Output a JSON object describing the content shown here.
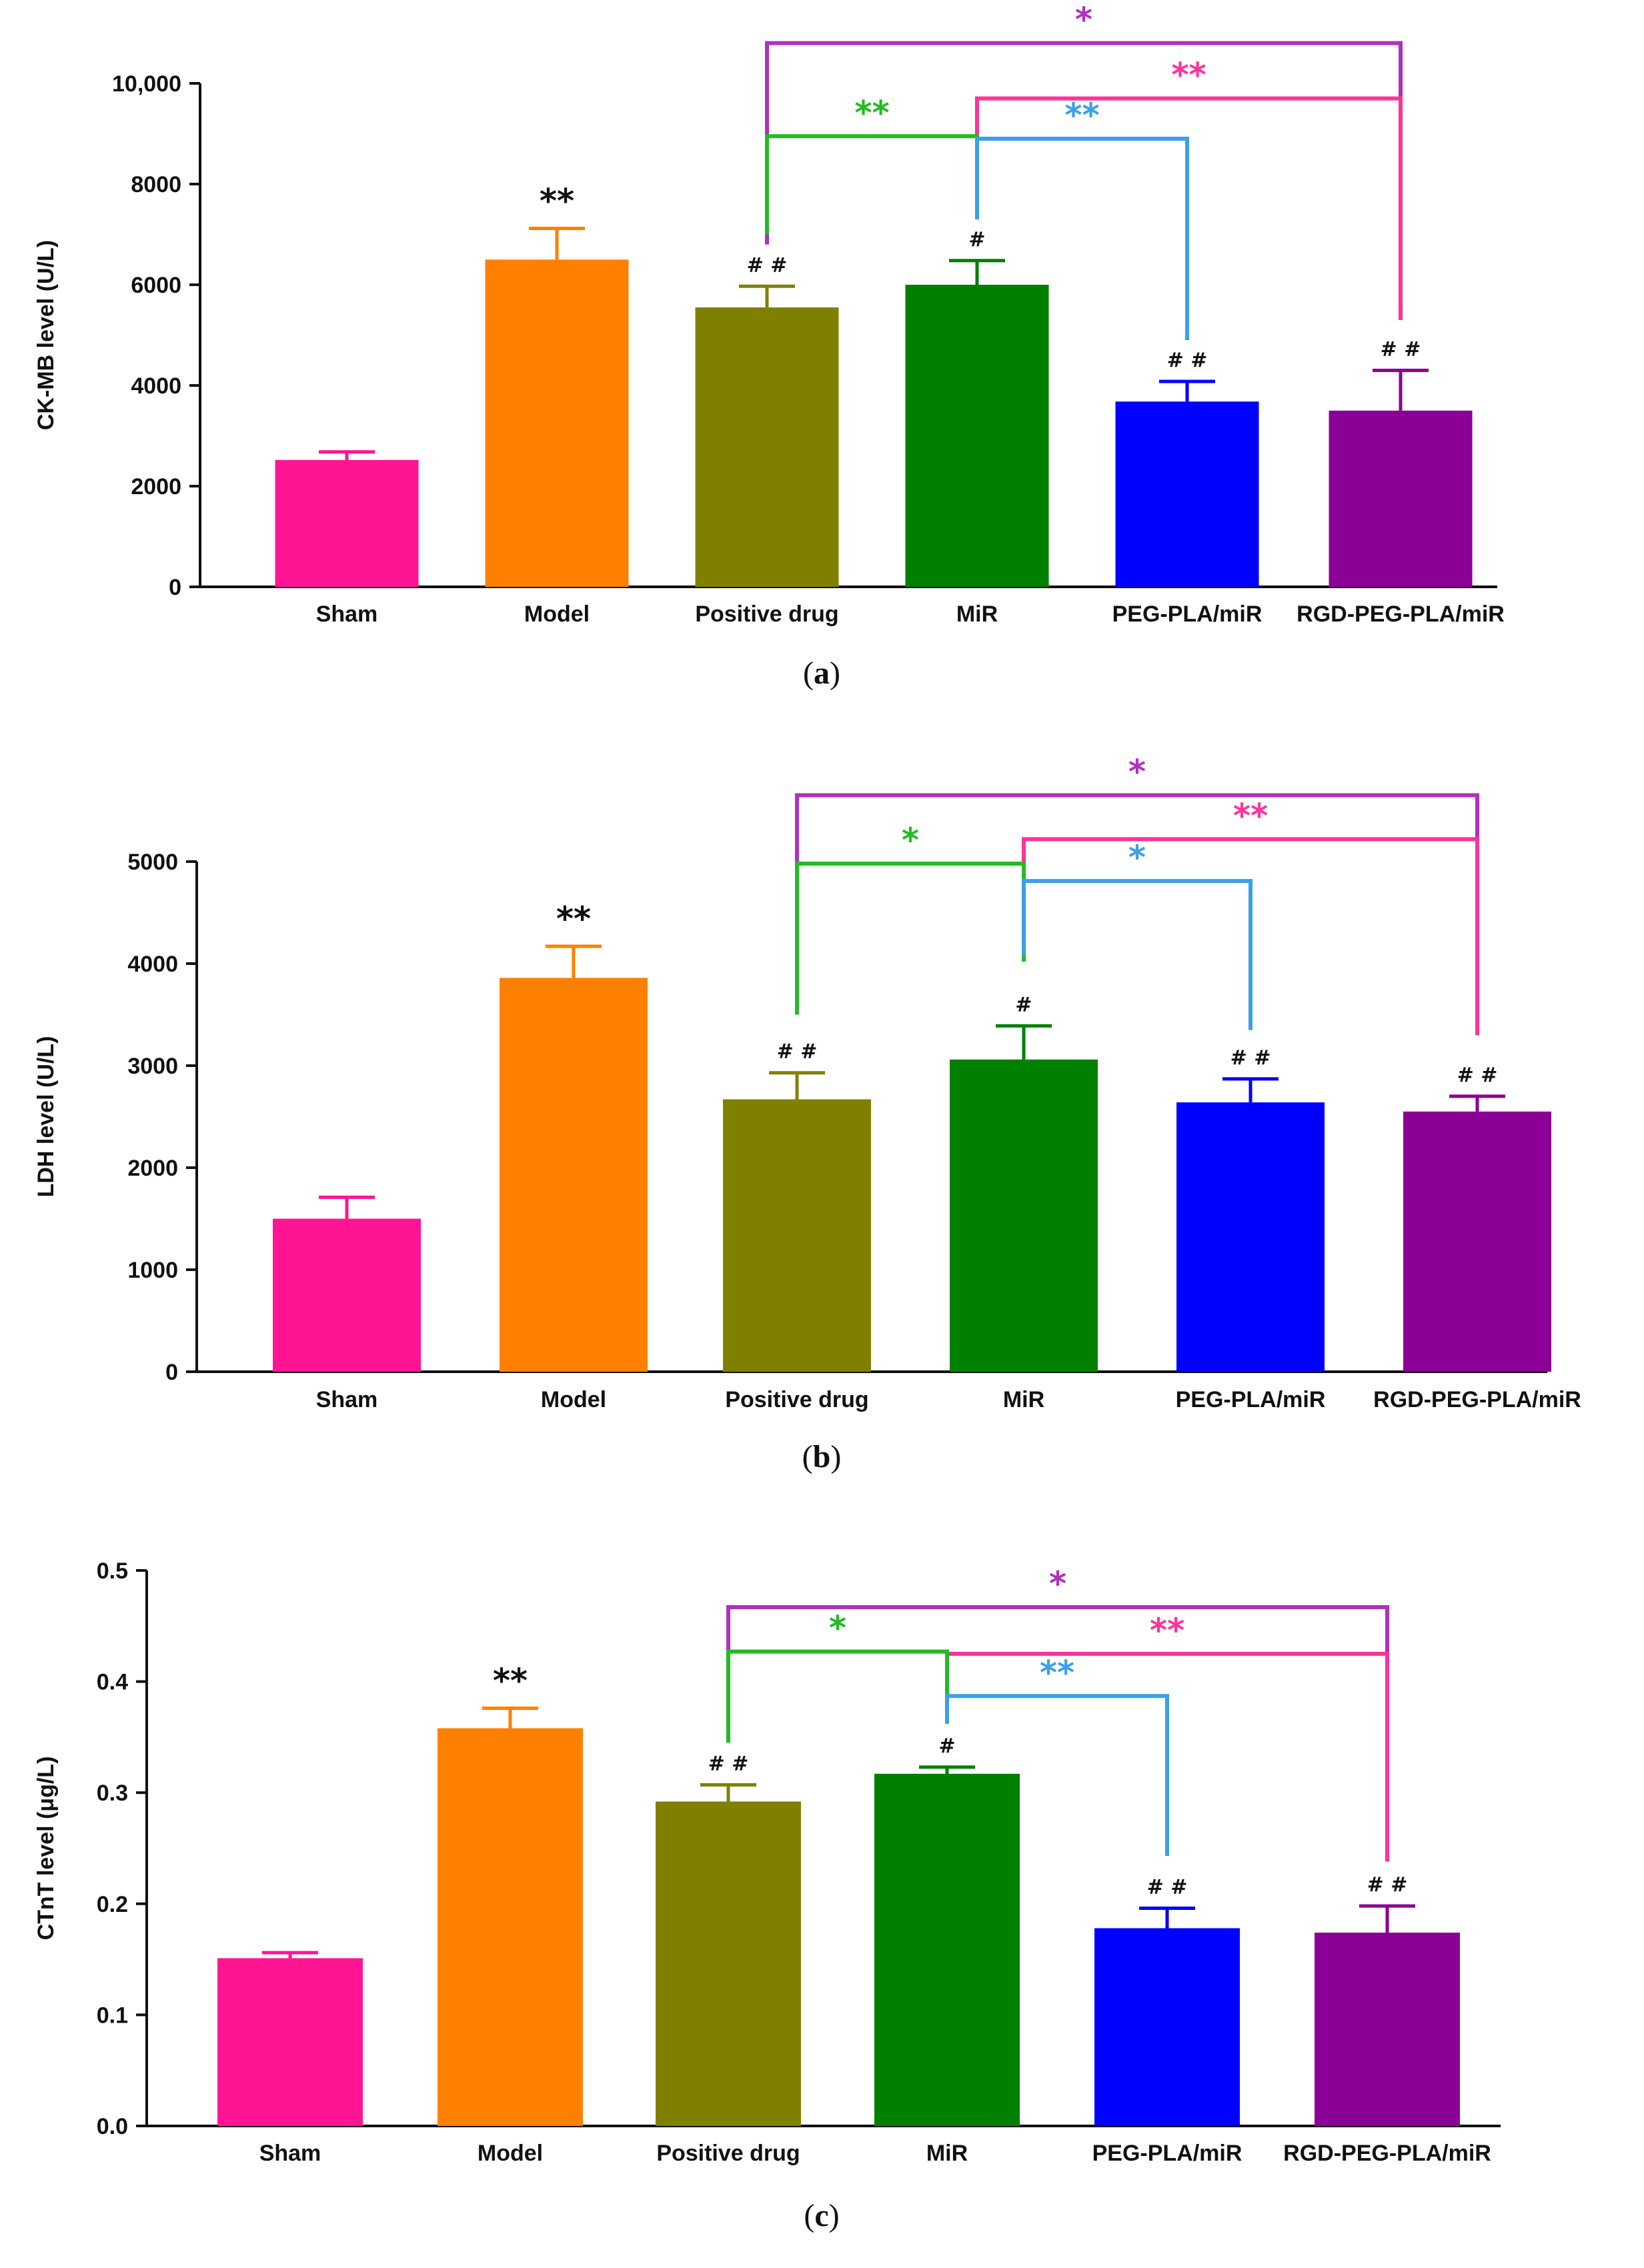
{
  "chart_data": [
    {
      "panel": "a",
      "type": "bar",
      "ylabel": "CK-MB level (U/L)",
      "ylim": [
        0,
        10000
      ],
      "yticks": [
        0,
        2000,
        4000,
        6000,
        8000,
        10000
      ],
      "ytick_labels": [
        "0",
        "2000",
        "4000",
        "6000",
        "8000",
        "10,000"
      ],
      "categories": [
        "Sham",
        "Model",
        "Positive drug",
        "MiR",
        "PEG-PLA/miR",
        "RGD-PEG-PLA/miR"
      ],
      "values": [
        2520,
        6500,
        5550,
        6000,
        3680,
        3500
      ],
      "errors": [
        160,
        620,
        420,
        480,
        400,
        800
      ],
      "colors": [
        "#ff1493",
        "#ff8000",
        "#808000",
        "#008000",
        "#0000ff",
        "#8b0096"
      ],
      "marks": [
        "",
        "**",
        "# #",
        "#",
        "# #",
        "# #"
      ],
      "brackets": [
        {
          "from": 2,
          "to": 5,
          "y": 10800,
          "from_end": 6800,
          "to_end": 5300,
          "label": "*",
          "color": "#b030c0"
        },
        {
          "from": 3,
          "to": 5,
          "y": 9700,
          "from_end": 7300,
          "to_end": 5300,
          "label": "**",
          "color": "#ff3399"
        },
        {
          "from": 2,
          "to": 3,
          "y": 8950,
          "from_end": 7000,
          "to_end": 7500,
          "label": "**",
          "color": "#22bb22"
        },
        {
          "from": 3,
          "to": 4,
          "y": 8900,
          "from_end": 7300,
          "to_end": 4900,
          "label": "**",
          "color": "#3ca0e6"
        }
      ],
      "caption": "a"
    },
    {
      "panel": "b",
      "type": "bar",
      "ylabel": "LDH level (U/L)",
      "ylim": [
        0,
        5000
      ],
      "yticks": [
        0,
        1000,
        2000,
        3000,
        4000,
        5000
      ],
      "ytick_labels": [
        "0",
        "1000",
        "2000",
        "3000",
        "4000",
        "5000"
      ],
      "categories": [
        "Sham",
        "Model",
        "Positive drug",
        "MiR",
        "PEG-PLA/miR",
        "RGD-PEG-PLA/miR"
      ],
      "values": [
        1500,
        3860,
        2670,
        3060,
        2640,
        2550
      ],
      "errors": [
        210,
        310,
        260,
        330,
        230,
        150
      ],
      "colors": [
        "#ff1493",
        "#ff8000",
        "#808000",
        "#008000",
        "#0000ff",
        "#8b0096"
      ],
      "marks": [
        "",
        "**",
        "# #",
        "#",
        "# #",
        "# #"
      ],
      "brackets": [
        {
          "from": 2,
          "to": 5,
          "y": 5650,
          "from_end": 3500,
          "to_end": 3300,
          "label": "*",
          "color": "#b030c0"
        },
        {
          "from": 3,
          "to": 5,
          "y": 5220,
          "from_end": 4050,
          "to_end": 3300,
          "label": "**",
          "color": "#ff3399"
        },
        {
          "from": 2,
          "to": 3,
          "y": 4980,
          "from_end": 3500,
          "to_end": 4020,
          "label": "*",
          "color": "#22bb22"
        },
        {
          "from": 3,
          "to": 4,
          "y": 4810,
          "from_end": 4080,
          "to_end": 3350,
          "label": "*",
          "color": "#3ca0e6"
        }
      ],
      "caption": "b"
    },
    {
      "panel": "c",
      "type": "bar",
      "ylabel": "CTnT level (μg/L)",
      "ylim": [
        0,
        0.5
      ],
      "yticks": [
        0,
        0.1,
        0.2,
        0.3,
        0.4,
        0.5
      ],
      "ytick_labels": [
        "0.0",
        "0.1",
        "0.2",
        "0.3",
        "0.4",
        "0.5"
      ],
      "categories": [
        "Sham",
        "Model",
        "Positive drug",
        "MiR",
        "PEG-PLA/miR",
        "RGD-PEG-PLA/miR"
      ],
      "values": [
        0.151,
        0.358,
        0.292,
        0.317,
        0.178,
        0.174
      ],
      "errors": [
        0.005,
        0.018,
        0.015,
        0.006,
        0.018,
        0.024
      ],
      "colors": [
        "#ff1493",
        "#ff8000",
        "#808000",
        "#008000",
        "#0000ff",
        "#8b0096"
      ],
      "marks": [
        "",
        "**",
        "# #",
        "#",
        "# #",
        "# #"
      ],
      "brackets": [
        {
          "from": 2,
          "to": 5,
          "y": 0.467,
          "from_end": 0.345,
          "to_end": 0.238,
          "label": "*",
          "color": "#b030c0"
        },
        {
          "from": 3,
          "to": 5,
          "y": 0.425,
          "from_end": 0.362,
          "to_end": 0.238,
          "label": "**",
          "color": "#ff3399"
        },
        {
          "from": 2,
          "to": 3,
          "y": 0.427,
          "from_end": 0.345,
          "to_end": 0.362,
          "label": "*",
          "color": "#22bb22"
        },
        {
          "from": 3,
          "to": 4,
          "y": 0.387,
          "from_end": 0.362,
          "to_end": 0.243,
          "label": "**",
          "color": "#3ca0e6"
        }
      ],
      "caption": "c"
    }
  ]
}
